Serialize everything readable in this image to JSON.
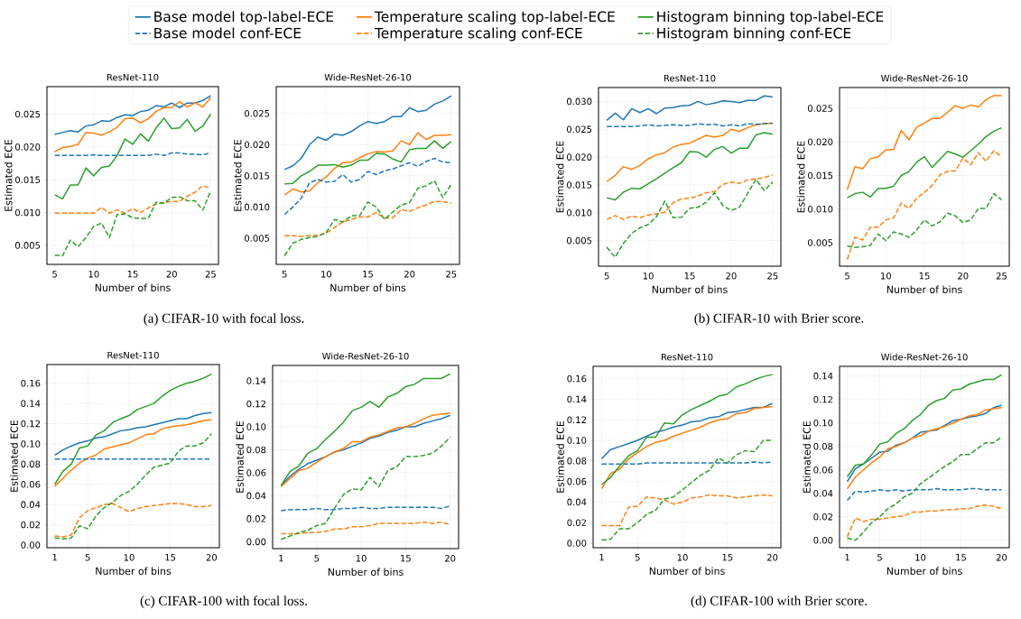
{
  "chart_data": [
    {
      "type": "line",
      "title": "ResNet-110",
      "xlabel": "Number of bins",
      "ylabel": "Estimated ECE",
      "legend": "top",
      "grid": true,
      "annotations": [
        "(a) CIFAR-10 with focal loss."
      ],
      "x": [
        5,
        6,
        7,
        8,
        9,
        10,
        11,
        12,
        13,
        14,
        15,
        16,
        17,
        18,
        19,
        20,
        21,
        22,
        23,
        24,
        25
      ],
      "xlim": [
        4,
        26
      ],
      "xticks": [
        5,
        10,
        15,
        20,
        25
      ],
      "ylim": [
        0.0021,
        0.0292
      ],
      "yticks": [
        0.005,
        {
          "value": 0.01,
          "label": "0.010"
        },
        0.015,
        {
          "value": 0.02,
          "label": "0.020"
        },
        0.025
      ],
      "series": [
        {
          "name": "Base model top-label-ECE",
          "color": "#1f77b4",
          "line_style": "solid",
          "values": [
            0.0219,
            0.0222,
            0.0225,
            0.0223,
            0.0232,
            0.0234,
            0.024,
            0.0239,
            0.0245,
            0.0249,
            0.0248,
            0.0254,
            0.0256,
            0.0263,
            0.0261,
            0.0267,
            0.026,
            0.0267,
            0.0267,
            0.0271,
            0.0278
          ]
        },
        {
          "name": "Temperature scaling top-label-ECE",
          "color": "#ff7f0e",
          "line_style": "solid",
          "values": [
            0.0193,
            0.0199,
            0.0201,
            0.0204,
            0.0222,
            0.0221,
            0.0218,
            0.0223,
            0.023,
            0.0243,
            0.0244,
            0.0237,
            0.0243,
            0.0254,
            0.026,
            0.026,
            0.0269,
            0.0261,
            0.0267,
            0.0261,
            0.0275
          ]
        },
        {
          "name": "Histogram binning top-label-ECE",
          "color": "#2ca02c",
          "line_style": "solid",
          "values": [
            0.0127,
            0.0121,
            0.0142,
            0.0142,
            0.0168,
            0.0156,
            0.0169,
            0.0171,
            0.0187,
            0.0212,
            0.0204,
            0.022,
            0.0209,
            0.0229,
            0.0244,
            0.0228,
            0.0229,
            0.0242,
            0.0224,
            0.0232,
            0.025
          ]
        },
        {
          "name": "Base model conf-ECE",
          "color": "#1f77b4",
          "line_style": "dashed",
          "values": [
            0.0187,
            0.0187,
            0.0187,
            0.0187,
            0.0187,
            0.0188,
            0.0187,
            0.0187,
            0.0187,
            0.0187,
            0.0187,
            0.0187,
            0.0187,
            0.0189,
            0.0187,
            0.0191,
            0.0191,
            0.0189,
            0.0189,
            0.0188,
            0.0191
          ]
        },
        {
          "name": "Temperature scaling conf-ECE",
          "color": "#ff7f0e",
          "line_style": "dashed",
          "values": [
            0.0099,
            0.0099,
            0.0099,
            0.0099,
            0.0099,
            0.0099,
            0.0108,
            0.0099,
            0.0104,
            0.0099,
            0.0106,
            0.01,
            0.0107,
            0.0113,
            0.0115,
            0.0117,
            0.0117,
            0.0125,
            0.0131,
            0.0141,
            0.0137
          ]
        },
        {
          "name": "Histogram binning  conf-ECE",
          "color": "#2ca02c",
          "line_style": "dashed",
          "values": [
            0.0035,
            0.0034,
            0.0058,
            0.0048,
            0.0062,
            0.0079,
            0.0084,
            0.0062,
            0.0097,
            0.0098,
            0.0092,
            0.0091,
            0.0091,
            0.0116,
            0.0114,
            0.0123,
            0.0124,
            0.0118,
            0.0118,
            0.0104,
            0.0133
          ]
        }
      ]
    },
    {
      "type": "line",
      "title": "Wide-ResNet-26-10",
      "xlabel": "Number of bins",
      "ylabel": "Estimated ECE",
      "grid": true,
      "x": [
        5,
        6,
        7,
        8,
        9,
        10,
        11,
        12,
        13,
        14,
        15,
        16,
        17,
        18,
        19,
        20,
        21,
        22,
        23,
        24,
        25
      ],
      "xlim": [
        4,
        26
      ],
      "xticks": [
        5,
        10,
        15,
        20,
        25
      ],
      "ylim": [
        0.0008,
        0.0293
      ],
      "yticks": [
        0.005,
        {
          "value": 0.01,
          "label": "0.010"
        },
        0.015,
        {
          "value": 0.02,
          "label": "0.020"
        },
        0.025
      ],
      "series": [
        {
          "color": "#1f77b4",
          "line_style": "solid",
          "values": [
            0.016,
            0.0166,
            0.0178,
            0.02,
            0.0212,
            0.0207,
            0.0217,
            0.0215,
            0.0221,
            0.023,
            0.0237,
            0.0234,
            0.0237,
            0.0245,
            0.0245,
            0.0259,
            0.0253,
            0.0255,
            0.0265,
            0.027,
            0.0278
          ]
        },
        {
          "color": "#ff7f0e",
          "line_style": "solid",
          "values": [
            0.0119,
            0.0129,
            0.0124,
            0.0126,
            0.0139,
            0.0148,
            0.0162,
            0.0171,
            0.0172,
            0.0179,
            0.0185,
            0.0189,
            0.0188,
            0.019,
            0.0206,
            0.02,
            0.0219,
            0.0208,
            0.0215,
            0.0215,
            0.0216
          ]
        },
        {
          "color": "#2ca02c",
          "line_style": "solid",
          "values": [
            0.0137,
            0.0138,
            0.015,
            0.0157,
            0.0167,
            0.0167,
            0.0168,
            0.0164,
            0.0167,
            0.0175,
            0.0175,
            0.0186,
            0.0185,
            0.0177,
            0.0172,
            0.0192,
            0.0194,
            0.0194,
            0.0206,
            0.0194,
            0.0205
          ]
        },
        {
          "color": "#1f77b4",
          "line_style": "dashed",
          "values": [
            0.0088,
            0.01,
            0.0114,
            0.0139,
            0.0144,
            0.014,
            0.0141,
            0.0152,
            0.014,
            0.0144,
            0.0157,
            0.0152,
            0.0158,
            0.0161,
            0.0166,
            0.0171,
            0.0165,
            0.0173,
            0.0178,
            0.0172,
            0.0171
          ]
        },
        {
          "color": "#ff7f0e",
          "line_style": "dashed",
          "values": [
            0.0054,
            0.0054,
            0.0053,
            0.0054,
            0.0055,
            0.0058,
            0.0067,
            0.0076,
            0.008,
            0.0084,
            0.0084,
            0.0091,
            0.0082,
            0.0083,
            0.0096,
            0.0093,
            0.0099,
            0.0103,
            0.0109,
            0.0109,
            0.0106
          ]
        },
        {
          "color": "#2ca02c",
          "line_style": "dashed",
          "values": [
            0.0022,
            0.0042,
            0.0048,
            0.0051,
            0.0053,
            0.0059,
            0.008,
            0.0076,
            0.0086,
            0.0086,
            0.0108,
            0.01,
            0.008,
            0.0092,
            0.0103,
            0.0107,
            0.013,
            0.0134,
            0.0142,
            0.0115,
            0.0136
          ]
        }
      ]
    },
    {
      "type": "line",
      "title": "ResNet-110",
      "xlabel": "Number of bins",
      "ylabel": "Estimated ECE",
      "grid": true,
      "annotations": [
        "(b) CIFAR-10 with Brier score."
      ],
      "x": [
        5,
        6,
        7,
        8,
        9,
        10,
        11,
        12,
        13,
        14,
        15,
        16,
        17,
        18,
        19,
        20,
        21,
        22,
        23,
        24,
        25
      ],
      "xlim": [
        4,
        26
      ],
      "xticks": [
        5,
        10,
        15,
        20,
        25
      ],
      "ylim": [
        0.0004,
        0.0325
      ],
      "yticks": [
        0.005,
        {
          "value": 0.01,
          "label": "0.010"
        },
        0.015,
        {
          "value": 0.02,
          "label": "0.020"
        },
        0.025,
        {
          "value": 0.03,
          "label": "0.030"
        }
      ],
      "series": [
        {
          "color": "#1f77b4",
          "line_style": "solid",
          "values": [
            0.0266,
            0.0279,
            0.0267,
            0.0287,
            0.028,
            0.0287,
            0.0278,
            0.0288,
            0.0289,
            0.0292,
            0.0293,
            0.03,
            0.0294,
            0.0297,
            0.0301,
            0.03,
            0.0298,
            0.0302,
            0.0302,
            0.031,
            0.0308
          ]
        },
        {
          "color": "#ff7f0e",
          "line_style": "solid",
          "values": [
            0.0156,
            0.0167,
            0.0183,
            0.0178,
            0.0185,
            0.0197,
            0.0204,
            0.0208,
            0.0218,
            0.0223,
            0.0225,
            0.0232,
            0.0239,
            0.0236,
            0.0239,
            0.025,
            0.0246,
            0.0253,
            0.0258,
            0.026,
            0.0261
          ]
        },
        {
          "color": "#2ca02c",
          "line_style": "solid",
          "values": [
            0.0127,
            0.0123,
            0.0137,
            0.0144,
            0.0143,
            0.0152,
            0.0161,
            0.0171,
            0.0181,
            0.019,
            0.021,
            0.0209,
            0.02,
            0.0214,
            0.0219,
            0.0207,
            0.0216,
            0.0216,
            0.024,
            0.0244,
            0.0241
          ]
        },
        {
          "color": "#1f77b4",
          "line_style": "dashed",
          "values": [
            0.0255,
            0.0255,
            0.0255,
            0.0255,
            0.0256,
            0.0258,
            0.0256,
            0.0257,
            0.0258,
            0.0257,
            0.0257,
            0.026,
            0.0258,
            0.0259,
            0.0256,
            0.0258,
            0.0256,
            0.026,
            0.0259,
            0.026,
            0.0261
          ]
        },
        {
          "color": "#ff7f0e",
          "line_style": "dashed",
          "values": [
            0.0088,
            0.0095,
            0.0088,
            0.0094,
            0.0091,
            0.0096,
            0.0098,
            0.0101,
            0.0118,
            0.0125,
            0.0126,
            0.013,
            0.0136,
            0.0138,
            0.0151,
            0.0155,
            0.0153,
            0.0159,
            0.0161,
            0.0163,
            0.0168
          ]
        },
        {
          "color": "#2ca02c",
          "line_style": "dashed",
          "values": [
            0.0038,
            0.002,
            0.0045,
            0.0063,
            0.0073,
            0.0079,
            0.0093,
            0.0121,
            0.0091,
            0.0092,
            0.0108,
            0.011,
            0.0119,
            0.0136,
            0.0113,
            0.0104,
            0.011,
            0.0135,
            0.016,
            0.014,
            0.0155
          ]
        }
      ]
    },
    {
      "type": "line",
      "title": "Wide-ResNet-26-10",
      "xlabel": "Number of bins",
      "ylabel": "Estimated ECE",
      "grid": true,
      "x": [
        5,
        6,
        7,
        8,
        9,
        10,
        11,
        12,
        13,
        14,
        15,
        16,
        17,
        18,
        19,
        20,
        21,
        22,
        23,
        24,
        25
      ],
      "xlim": [
        4,
        26
      ],
      "xticks": [
        5,
        10,
        15,
        20,
        25
      ],
      "ylim": [
        0.0015,
        0.0281
      ],
      "yticks": [
        0.005,
        {
          "value": 0.01,
          "label": "0.010"
        },
        0.015,
        {
          "value": 0.02,
          "label": "0.020"
        },
        0.025
      ],
      "series": [
        {
          "color": "#ff7f0e",
          "line_style": "solid",
          "values": [
            0.0129,
            0.0163,
            0.016,
            0.0175,
            0.0178,
            0.0188,
            0.0189,
            0.0217,
            0.0203,
            0.0222,
            0.0228,
            0.0235,
            0.0235,
            0.0244,
            0.0254,
            0.025,
            0.0255,
            0.0252,
            0.0263,
            0.0269,
            0.0269
          ]
        },
        {
          "color": "#2ca02c",
          "line_style": "solid",
          "values": [
            0.0117,
            0.0123,
            0.0125,
            0.0118,
            0.0131,
            0.0131,
            0.0134,
            0.015,
            0.0156,
            0.017,
            0.0178,
            0.0162,
            0.0174,
            0.0186,
            0.0182,
            0.0177,
            0.0187,
            0.0197,
            0.0208,
            0.0216,
            0.0221
          ]
        },
        {
          "color": "#ff7f0e",
          "line_style": "dashed",
          "values": [
            0.0025,
            0.0058,
            0.0054,
            0.0073,
            0.0073,
            0.0084,
            0.0087,
            0.0109,
            0.0101,
            0.0116,
            0.0125,
            0.0135,
            0.0151,
            0.0156,
            0.0157,
            0.0176,
            0.0166,
            0.0184,
            0.0171,
            0.0187,
            0.0178
          ]
        },
        {
          "color": "#2ca02c",
          "line_style": "dashed",
          "values": [
            0.0045,
            0.0043,
            0.0044,
            0.0046,
            0.0063,
            0.0053,
            0.0066,
            0.0063,
            0.0058,
            0.0069,
            0.0084,
            0.0075,
            0.0081,
            0.0094,
            0.009,
            0.008,
            0.0084,
            0.0101,
            0.0101,
            0.0123,
            0.0114
          ]
        }
      ]
    },
    {
      "type": "line",
      "title": "ResNet-110",
      "xlabel": "Number of bins",
      "ylabel": "Estimated ECE",
      "grid": true,
      "annotations": [
        "(c) CIFAR-100 with focal loss."
      ],
      "x": [
        1,
        2,
        3,
        4,
        5,
        6,
        7,
        8,
        9,
        10,
        11,
        12,
        13,
        14,
        15,
        16,
        17,
        18,
        19,
        20
      ],
      "xlim": [
        0.05,
        20.95
      ],
      "xticks": [
        1,
        5,
        10,
        15,
        20
      ],
      "ylim": [
        -0.0027,
        0.1785
      ],
      "yticks": [
        {
          "value": 0,
          "label": "0.00"
        },
        0.02,
        0.04,
        0.06,
        0.08,
        {
          "value": 0.1,
          "label": "0.10"
        },
        0.12,
        0.14,
        0.16
      ],
      "series": [
        {
          "color": "#1f77b4",
          "line_style": "solid",
          "values": [
            0.089,
            0.094,
            0.098,
            0.101,
            0.103,
            0.106,
            0.107,
            0.11,
            0.113,
            0.114,
            0.116,
            0.117,
            0.119,
            0.121,
            0.123,
            0.125,
            0.125,
            0.128,
            0.13,
            0.131
          ]
        },
        {
          "color": "#ff7f0e",
          "line_style": "solid",
          "values": [
            0.058,
            0.066,
            0.074,
            0.081,
            0.086,
            0.089,
            0.095,
            0.097,
            0.099,
            0.101,
            0.105,
            0.109,
            0.11,
            0.115,
            0.117,
            0.118,
            0.119,
            0.121,
            0.123,
            0.124
          ]
        },
        {
          "color": "#2ca02c",
          "line_style": "solid",
          "values": [
            0.06,
            0.073,
            0.08,
            0.096,
            0.098,
            0.109,
            0.113,
            0.121,
            0.125,
            0.128,
            0.134,
            0.137,
            0.14,
            0.147,
            0.153,
            0.157,
            0.16,
            0.162,
            0.165,
            0.169
          ]
        },
        {
          "color": "#1f77b4",
          "line_style": "dashed",
          "values": [
            0.085,
            0.085,
            0.085,
            0.085,
            0.085,
            0.085,
            0.085,
            0.085,
            0.085,
            0.085,
            0.085,
            0.085,
            0.085,
            0.085,
            0.085,
            0.085,
            0.085,
            0.085,
            0.085,
            0.085
          ]
        },
        {
          "color": "#ff7f0e",
          "line_style": "dashed",
          "values": [
            0.009,
            0.008,
            0.01,
            0.027,
            0.034,
            0.037,
            0.04,
            0.041,
            0.037,
            0.033,
            0.036,
            0.038,
            0.039,
            0.04,
            0.041,
            0.041,
            0.04,
            0.038,
            0.038,
            0.039
          ]
        },
        {
          "color": "#2ca02c",
          "line_style": "dashed",
          "values": [
            0.007,
            0.006,
            0.007,
            0.019,
            0.016,
            0.029,
            0.037,
            0.042,
            0.049,
            0.053,
            0.06,
            0.069,
            0.077,
            0.079,
            0.081,
            0.093,
            0.098,
            0.098,
            0.101,
            0.11
          ]
        }
      ]
    },
    {
      "type": "line",
      "title": "Wide-ResNet-26-10",
      "xlabel": "Number of bins",
      "ylabel": "Estimated ECE",
      "grid": true,
      "x": [
        1,
        2,
        3,
        4,
        5,
        6,
        7,
        8,
        9,
        10,
        11,
        12,
        13,
        14,
        15,
        16,
        17,
        18,
        19,
        20
      ],
      "xlim": [
        0.05,
        20.95
      ],
      "xticks": [
        1,
        5,
        10,
        15,
        20
      ],
      "ylim": [
        -0.006,
        0.1534
      ],
      "yticks": [
        {
          "value": 0,
          "label": "0.00"
        },
        0.02,
        0.04,
        0.06,
        0.08,
        {
          "value": 0.1,
          "label": "0.10"
        },
        0.12,
        0.14
      ],
      "series": [
        {
          "color": "#1f77b4",
          "line_style": "solid",
          "values": [
            0.049,
            0.057,
            0.063,
            0.068,
            0.071,
            0.074,
            0.078,
            0.08,
            0.083,
            0.086,
            0.09,
            0.092,
            0.095,
            0.097,
            0.1,
            0.1,
            0.103,
            0.105,
            0.107,
            0.11
          ]
        },
        {
          "color": "#ff7f0e",
          "line_style": "solid",
          "values": [
            0.048,
            0.055,
            0.062,
            0.064,
            0.069,
            0.074,
            0.078,
            0.081,
            0.087,
            0.087,
            0.091,
            0.093,
            0.096,
            0.099,
            0.1,
            0.103,
            0.107,
            0.11,
            0.111,
            0.112
          ]
        },
        {
          "color": "#2ca02c",
          "line_style": "solid",
          "values": [
            0.049,
            0.061,
            0.066,
            0.077,
            0.081,
            0.089,
            0.096,
            0.104,
            0.114,
            0.117,
            0.122,
            0.117,
            0.126,
            0.129,
            0.135,
            0.137,
            0.142,
            0.142,
            0.142,
            0.146
          ]
        },
        {
          "color": "#1f77b4",
          "line_style": "dashed",
          "values": [
            0.027,
            0.028,
            0.028,
            0.028,
            0.029,
            0.028,
            0.028,
            0.029,
            0.029,
            0.03,
            0.029,
            0.029,
            0.03,
            0.03,
            0.03,
            0.03,
            0.03,
            0.03,
            0.029,
            0.031
          ]
        },
        {
          "color": "#ff7f0e",
          "line_style": "dashed",
          "values": [
            0.007,
            0.007,
            0.007,
            0.008,
            0.008,
            0.009,
            0.011,
            0.011,
            0.013,
            0.013,
            0.014,
            0.016,
            0.016,
            0.016,
            0.016,
            0.016,
            0.017,
            0.016,
            0.017,
            0.015
          ]
        },
        {
          "color": "#2ca02c",
          "line_style": "dashed",
          "values": [
            0.002,
            0.005,
            0.008,
            0.01,
            0.014,
            0.016,
            0.029,
            0.041,
            0.046,
            0.045,
            0.056,
            0.048,
            0.062,
            0.065,
            0.074,
            0.074,
            0.075,
            0.077,
            0.083,
            0.091
          ]
        }
      ]
    },
    {
      "type": "line",
      "title": "ResNet-110",
      "xlabel": "Number of bins",
      "ylabel": "Estimated ECE",
      "grid": true,
      "annotations": [
        "(d) CIFAR-100 with Brier score."
      ],
      "x": [
        1,
        2,
        3,
        4,
        5,
        6,
        7,
        8,
        9,
        10,
        11,
        12,
        13,
        14,
        15,
        16,
        17,
        18,
        19,
        20
      ],
      "xlim": [
        0.05,
        20.95
      ],
      "xticks": [
        1,
        5,
        10,
        15,
        20
      ],
      "ylim": [
        -0.0044,
        0.172
      ],
      "yticks": [
        {
          "value": 0,
          "label": "0.00"
        },
        0.02,
        0.04,
        0.06,
        0.08,
        {
          "value": 0.1,
          "label": "0.10"
        },
        0.12,
        0.14,
        0.16
      ],
      "series": [
        {
          "color": "#1f77b4",
          "line_style": "solid",
          "values": [
            0.082,
            0.091,
            0.094,
            0.097,
            0.1,
            0.104,
            0.108,
            0.11,
            0.113,
            0.115,
            0.118,
            0.119,
            0.122,
            0.123,
            0.127,
            0.128,
            0.13,
            0.132,
            0.132,
            0.136
          ]
        },
        {
          "color": "#ff7f0e",
          "line_style": "solid",
          "values": [
            0.053,
            0.068,
            0.072,
            0.082,
            0.088,
            0.094,
            0.098,
            0.1,
            0.104,
            0.107,
            0.11,
            0.113,
            0.117,
            0.12,
            0.121,
            0.126,
            0.127,
            0.131,
            0.132,
            0.133
          ]
        },
        {
          "color": "#2ca02c",
          "line_style": "solid",
          "values": [
            0.057,
            0.064,
            0.075,
            0.085,
            0.09,
            0.103,
            0.103,
            0.117,
            0.116,
            0.125,
            0.13,
            0.134,
            0.138,
            0.143,
            0.145,
            0.152,
            0.155,
            0.159,
            0.162,
            0.164
          ]
        },
        {
          "color": "#1f77b4",
          "line_style": "dashed",
          "values": [
            0.077,
            0.077,
            0.077,
            0.077,
            0.077,
            0.078,
            0.078,
            0.078,
            0.078,
            0.078,
            0.078,
            0.078,
            0.078,
            0.078,
            0.078,
            0.078,
            0.078,
            0.079,
            0.078,
            0.079
          ]
        },
        {
          "color": "#ff7f0e",
          "line_style": "dashed",
          "values": [
            0.017,
            0.017,
            0.017,
            0.035,
            0.036,
            0.045,
            0.044,
            0.042,
            0.038,
            0.04,
            0.044,
            0.045,
            0.047,
            0.046,
            0.046,
            0.044,
            0.045,
            0.046,
            0.047,
            0.046
          ]
        },
        {
          "color": "#2ca02c",
          "line_style": "dashed",
          "values": [
            0.003,
            0.004,
            0.014,
            0.014,
            0.02,
            0.028,
            0.032,
            0.043,
            0.045,
            0.052,
            0.059,
            0.066,
            0.071,
            0.083,
            0.078,
            0.086,
            0.09,
            0.089,
            0.1,
            0.1
          ]
        }
      ]
    },
    {
      "type": "line",
      "title": "Wide-ResNet-26-10",
      "xlabel": "Number of bins",
      "ylabel": "Estimated ECE",
      "grid": true,
      "x": [
        1,
        2,
        3,
        4,
        5,
        6,
        7,
        8,
        9,
        10,
        11,
        12,
        13,
        14,
        15,
        16,
        17,
        18,
        19,
        20
      ],
      "xlim": [
        0.05,
        20.95
      ],
      "xticks": [
        1,
        5,
        10,
        15,
        20
      ],
      "ylim": [
        -0.0063,
        0.1482
      ],
      "yticks": [
        {
          "value": 0,
          "label": "0.00"
        },
        0.02,
        0.04,
        0.06,
        0.08,
        {
          "value": 0.1,
          "label": "0.10"
        },
        0.12,
        0.14
      ],
      "series": [
        {
          "color": "#1f77b4",
          "line_style": "solid",
          "values": [
            0.05,
            0.061,
            0.065,
            0.07,
            0.075,
            0.076,
            0.081,
            0.083,
            0.087,
            0.092,
            0.093,
            0.094,
            0.098,
            0.102,
            0.103,
            0.105,
            0.106,
            0.108,
            0.113,
            0.115
          ]
        },
        {
          "color": "#ff7f0e",
          "line_style": "solid",
          "values": [
            0.044,
            0.054,
            0.06,
            0.066,
            0.071,
            0.078,
            0.08,
            0.083,
            0.087,
            0.089,
            0.093,
            0.095,
            0.097,
            0.1,
            0.103,
            0.106,
            0.107,
            0.111,
            0.112,
            0.113
          ]
        },
        {
          "color": "#2ca02c",
          "line_style": "solid",
          "values": [
            0.054,
            0.064,
            0.065,
            0.073,
            0.082,
            0.084,
            0.091,
            0.095,
            0.102,
            0.107,
            0.115,
            0.119,
            0.121,
            0.128,
            0.129,
            0.133,
            0.135,
            0.137,
            0.137,
            0.141
          ]
        },
        {
          "color": "#1f77b4",
          "line_style": "dashed",
          "values": [
            0.034,
            0.042,
            0.041,
            0.042,
            0.043,
            0.042,
            0.043,
            0.042,
            0.043,
            0.043,
            0.043,
            0.044,
            0.043,
            0.043,
            0.043,
            0.044,
            0.044,
            0.043,
            0.043,
            0.043
          ]
        },
        {
          "color": "#ff7f0e",
          "line_style": "dashed",
          "values": [
            0.003,
            0.019,
            0.016,
            0.018,
            0.018,
            0.019,
            0.02,
            0.021,
            0.024,
            0.024,
            0.025,
            0.025,
            0.026,
            0.026,
            0.027,
            0.027,
            0.029,
            0.03,
            0.029,
            0.027
          ]
        },
        {
          "color": "#2ca02c",
          "line_style": "dashed",
          "values": [
            0.002,
            0.0,
            0.007,
            0.015,
            0.02,
            0.027,
            0.031,
            0.037,
            0.04,
            0.048,
            0.053,
            0.058,
            0.063,
            0.067,
            0.073,
            0.073,
            0.078,
            0.083,
            0.083,
            0.088
          ]
        }
      ]
    }
  ]
}
